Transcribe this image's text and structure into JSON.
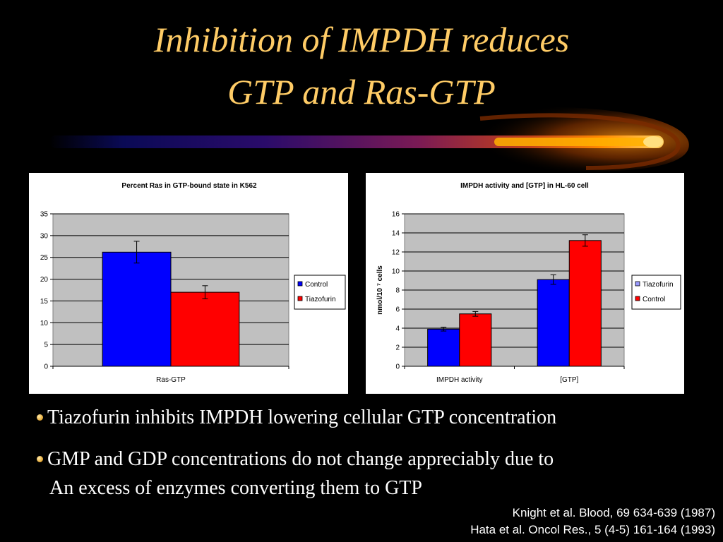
{
  "slide": {
    "title_line1": "Inhibition of IMPDH reduces",
    "title_line2": "GTP and Ras-GTP",
    "bullets": [
      "Tiazofurin inhibits IMPDH lowering cellular GTP concentration",
      "GMP and GDP concentrations do not change appreciably due to"
    ],
    "bullet2_continuation": "An excess of enzymes converting them to GTP",
    "references": [
      "Knight et al. Blood, 69 634-639 (1987)",
      "Hata et al. Oncol Res., 5 (4-5) 161-164 (1993)"
    ],
    "colors": {
      "title": "#FFCC66",
      "background": "#000000",
      "comet_core": "#FFB000"
    }
  },
  "chart_data": [
    {
      "type": "bar",
      "title": "Percent Ras in GTP-bound state in K562",
      "categories": [
        "Ras-GTP"
      ],
      "series": [
        {
          "name": "Control",
          "color": "#0000FF",
          "values": [
            26.2
          ],
          "error": [
            2.5
          ]
        },
        {
          "name": "Tiazofurin",
          "color": "#FF0000",
          "values": [
            17.0
          ],
          "error": [
            1.5
          ]
        }
      ],
      "ylim": [
        0,
        35
      ],
      "yticks": [
        "0",
        "5",
        "10",
        "15",
        "20",
        "25",
        "30",
        "35"
      ],
      "xlabel": "",
      "ylabel": "",
      "grid": true,
      "legend": "right"
    },
    {
      "type": "bar",
      "title": "IMPDH activity and [GTP] in HL-60 cell",
      "categories": [
        "IMPDH activity",
        "[GTP]"
      ],
      "series": [
        {
          "name": "Tiazofurin",
          "color": "#0000FF",
          "values": [
            3.9,
            9.1
          ],
          "error": [
            0.2,
            0.5
          ]
        },
        {
          "name": "Control",
          "color": "#FF0000",
          "values": [
            5.5,
            13.2
          ],
          "error": [
            0.25,
            0.6
          ]
        }
      ],
      "legend_entries": [
        {
          "name": "Tiazofurin",
          "color": "#9999FF"
        },
        {
          "name": "Control",
          "color": "#FF0000"
        }
      ],
      "ylim": [
        0,
        16
      ],
      "yticks": [
        "0",
        "2",
        "4",
        "6",
        "8",
        "10",
        "12",
        "14",
        "16"
      ],
      "xlabel": "",
      "ylabel": "nmol/10 ⁷ cells",
      "grid": true,
      "legend": "right"
    }
  ]
}
